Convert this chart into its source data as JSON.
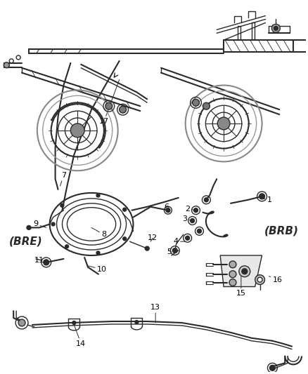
{
  "background_color": "#ffffff",
  "line_color": "#2a2a2a",
  "label_color": "#000000",
  "fig_width": 4.38,
  "fig_height": 5.33,
  "dpi": 100,
  "gray_fill": "#c8c8c8",
  "dark_gray": "#555555",
  "mid_gray": "#888888",
  "light_gray": "#dddddd"
}
